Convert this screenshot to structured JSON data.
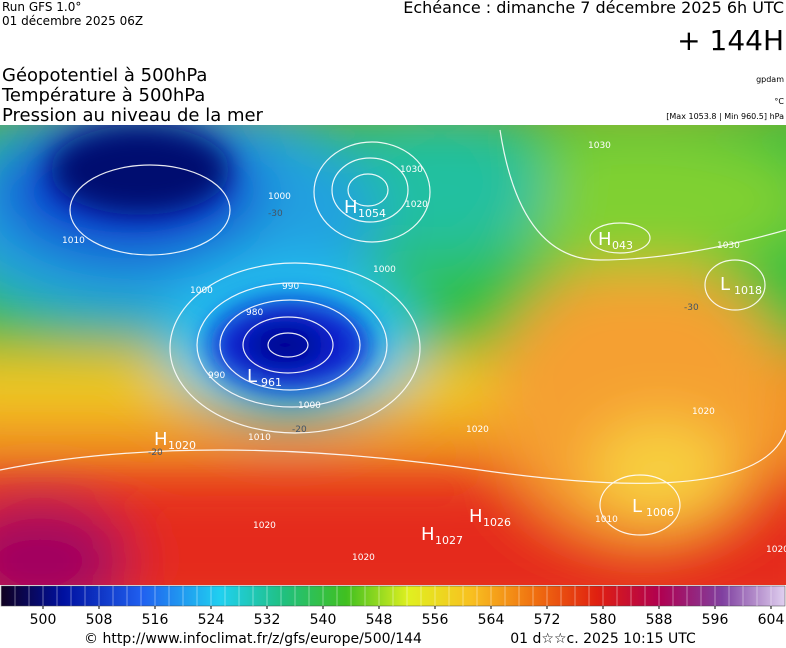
{
  "header": {
    "run": "Run GFS 1.0°",
    "date": "01 décembre 2025 06Z",
    "echeance": "Echéance : dimanche 7 décembre 2025 6h UTC",
    "horizon": "+ 144H",
    "fields": [
      "Géopotentiel à 500hPa",
      "Température à 500hPa",
      "Pression au niveau de la mer"
    ],
    "units": [
      "gpdam",
      "°C",
      "[Max 1053.8 | Min 960.5] hPa"
    ]
  },
  "map": {
    "centers": [
      {
        "letter": "H",
        "value": "1054"
      },
      {
        "letter": "H",
        "value": "043"
      },
      {
        "letter": "L",
        "value": "1018"
      },
      {
        "letter": "L",
        "value": "961"
      },
      {
        "letter": "H",
        "value": "1020"
      },
      {
        "letter": "H",
        "value": "1027"
      },
      {
        "letter": "H",
        "value": "1026"
      },
      {
        "letter": "L",
        "value": "1006"
      }
    ],
    "isobar_labels": [
      "1000",
      "1030",
      "1020",
      "1000",
      "990",
      "980",
      "1000",
      "1010",
      "990",
      "1000",
      "1010",
      "1020",
      "1020",
      "1020",
      "1020",
      "1030",
      "1030",
      "1020",
      "1010"
    ],
    "temperature_labels": [
      "-30",
      "-20",
      "-30",
      "-20"
    ]
  },
  "colorbar": {
    "xlim": [
      494,
      606
    ],
    "ticks": [
      500,
      508,
      516,
      524,
      532,
      540,
      548,
      556,
      564,
      572,
      580,
      588,
      596,
      604
    ]
  },
  "footer": {
    "url": "© http://www.infoclimat.fr/z/gfs/europe/500/144",
    "timestamp": "01 d☆☆c. 2025 10:15 UTC"
  }
}
